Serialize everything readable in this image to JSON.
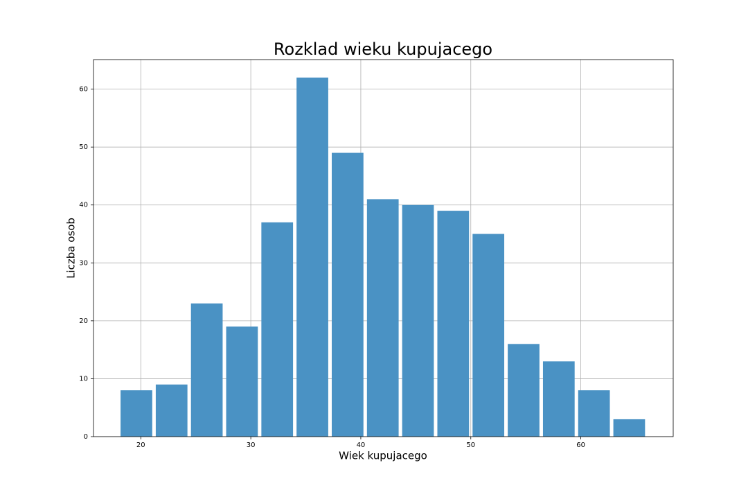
{
  "chart_data": {
    "type": "histogram",
    "title": "Rozklad wieku kupujacego",
    "x_label": "Wiek kupujacego",
    "y_label": "Liczba osob",
    "bins": [
      18,
      21.2,
      24.4,
      27.6,
      30.8,
      34,
      37.2,
      40.4,
      43.6,
      46.8,
      50,
      53.2,
      56.4,
      59.6,
      62.8,
      66
    ],
    "values": [
      8,
      9,
      23,
      19,
      37,
      62,
      49,
      41,
      40,
      39,
      35,
      16,
      13,
      8,
      3
    ],
    "color": "#4a92c4",
    "xlim": [
      15.7,
      68.4
    ],
    "xticks": [
      20,
      30,
      40,
      50,
      60
    ],
    "ylim": [
      0,
      65.1
    ],
    "yticks": [
      0,
      10,
      20,
      30,
      40,
      50,
      60
    ],
    "grid": true
  }
}
